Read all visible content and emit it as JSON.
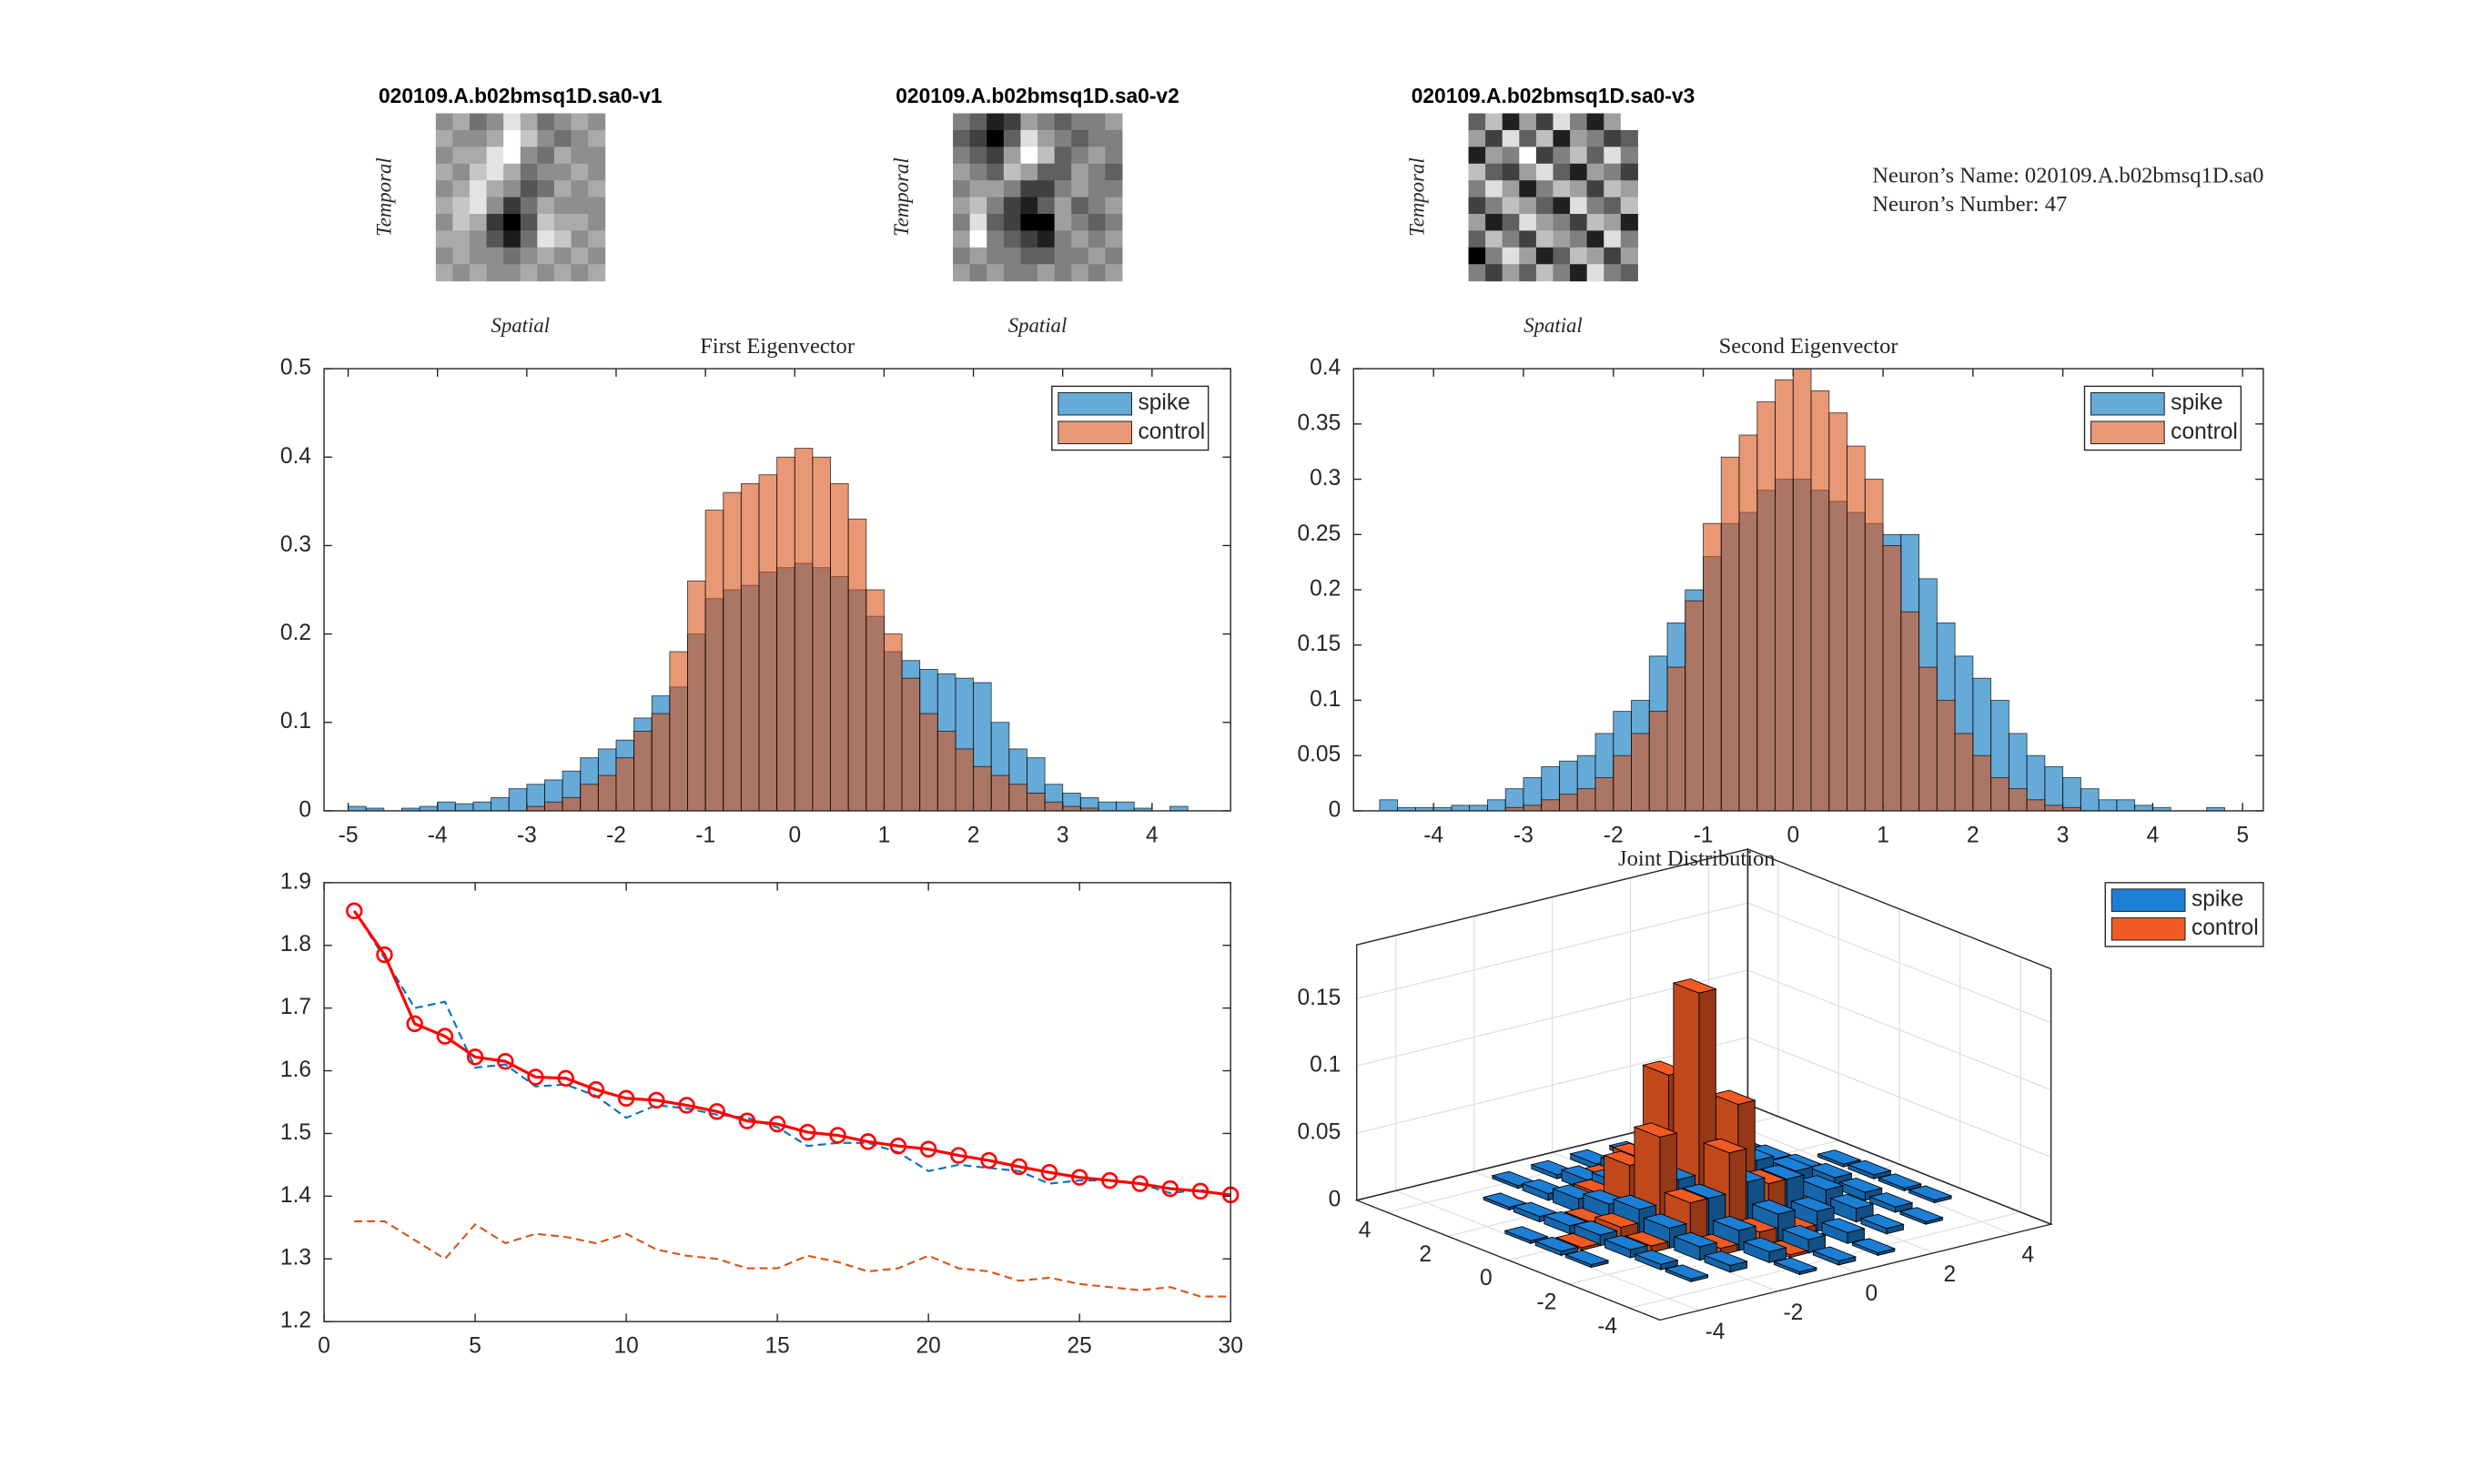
{
  "annotations": [
    "Neuron’s Name: 020109.A.b02bmsq1D.sa0",
    "Neuron’s Number: 47"
  ],
  "chart_data": [
    {
      "type": "image",
      "title": "020109.A.b02bmsq1D.sa0-v1",
      "xlabel": "Spatial",
      "ylabel": "Temporal",
      "values": [
        [
          5,
          6,
          4,
          5,
          8,
          6,
          4,
          5,
          6,
          5
        ],
        [
          6,
          5,
          5,
          6,
          9,
          7,
          5,
          4,
          5,
          6
        ],
        [
          5,
          6,
          6,
          8,
          9,
          5,
          4,
          6,
          5,
          5
        ],
        [
          6,
          5,
          7,
          8,
          6,
          4,
          5,
          5,
          6,
          5
        ],
        [
          5,
          6,
          8,
          6,
          5,
          3,
          4,
          6,
          5,
          6
        ],
        [
          6,
          7,
          8,
          5,
          2,
          4,
          6,
          5,
          5,
          5
        ],
        [
          5,
          7,
          6,
          2,
          0,
          3,
          7,
          6,
          6,
          5
        ],
        [
          6,
          6,
          5,
          3,
          1,
          4,
          8,
          7,
          5,
          6
        ],
        [
          5,
          6,
          5,
          5,
          4,
          5,
          6,
          5,
          6,
          5
        ],
        [
          6,
          5,
          6,
          5,
          5,
          6,
          5,
          6,
          5,
          6
        ]
      ]
    },
    {
      "type": "image",
      "title": "020109.A.b02bmsq1D.sa0-v2",
      "xlabel": "Spatial",
      "ylabel": "Temporal",
      "values": [
        [
          5,
          4,
          2,
          3,
          6,
          5,
          4,
          5,
          5,
          6
        ],
        [
          4,
          3,
          1,
          4,
          8,
          6,
          5,
          4,
          5,
          5
        ],
        [
          5,
          4,
          3,
          6,
          9,
          7,
          4,
          5,
          6,
          5
        ],
        [
          6,
          5,
          4,
          7,
          6,
          4,
          4,
          6,
          5,
          4
        ],
        [
          5,
          6,
          6,
          5,
          3,
          3,
          5,
          6,
          5,
          5
        ],
        [
          6,
          7,
          5,
          3,
          2,
          4,
          6,
          4,
          5,
          6
        ],
        [
          5,
          8,
          4,
          3,
          1,
          1,
          6,
          5,
          4,
          5
        ],
        [
          6,
          9,
          5,
          4,
          3,
          2,
          5,
          6,
          5,
          6
        ],
        [
          5,
          6,
          5,
          5,
          4,
          4,
          5,
          5,
          6,
          5
        ],
        [
          6,
          5,
          6,
          5,
          5,
          6,
          5,
          6,
          5,
          6
        ]
      ]
    },
    {
      "type": "image",
      "title": "020109.A.b02bmsq1D.sa0-v3",
      "xlabel": "Spatial",
      "ylabel": "Temporal",
      "values": [
        [
          4,
          7,
          2,
          6,
          3,
          8,
          5,
          2,
          6,
          9
        ],
        [
          6,
          3,
          8,
          4,
          7,
          2,
          6,
          5,
          3,
          4
        ],
        [
          2,
          6,
          5,
          9,
          3,
          5,
          7,
          4,
          8,
          5
        ],
        [
          7,
          4,
          3,
          6,
          8,
          4,
          2,
          6,
          5,
          3
        ],
        [
          5,
          8,
          6,
          2,
          5,
          7,
          6,
          3,
          7,
          6
        ],
        [
          3,
          5,
          7,
          6,
          4,
          2,
          8,
          5,
          4,
          7
        ],
        [
          6,
          2,
          4,
          8,
          6,
          5,
          3,
          7,
          6,
          2
        ],
        [
          4,
          7,
          5,
          3,
          7,
          6,
          5,
          2,
          8,
          5
        ],
        [
          1,
          5,
          8,
          6,
          2,
          4,
          7,
          6,
          3,
          6
        ],
        [
          5,
          3,
          6,
          4,
          7,
          5,
          2,
          8,
          5,
          4
        ]
      ]
    },
    {
      "type": "histogram",
      "title": "First Eigenvector",
      "legend": "northeast",
      "bins": [
        -5,
        -4.8,
        -4.6,
        -4.4,
        -4.2,
        -4,
        -3.8,
        -3.6,
        -3.4,
        -3.2,
        -3,
        -2.8,
        -2.6,
        -2.4,
        -2.2,
        -2,
        -1.8,
        -1.6,
        -1.4,
        -1.2,
        -1,
        -0.8,
        -0.6,
        -0.4,
        -0.2,
        0,
        0.2,
        0.4,
        0.6,
        0.8,
        1,
        1.2,
        1.4,
        1.6,
        1.8,
        2,
        2.2,
        2.4,
        2.6,
        2.8,
        3,
        3.2,
        3.4,
        3.6,
        3.8,
        4,
        4.2,
        4.4,
        4.6
      ],
      "series": [
        {
          "name": "spike",
          "color": "#0072bd",
          "values": [
            0.005,
            0.003,
            0,
            0.003,
            0.005,
            0.01,
            0.008,
            0.01,
            0.015,
            0.025,
            0.03,
            0.035,
            0.045,
            0.06,
            0.07,
            0.08,
            0.105,
            0.13,
            0.14,
            0.2,
            0.24,
            0.25,
            0.255,
            0.27,
            0.275,
            0.28,
            0.275,
            0.265,
            0.25,
            0.22,
            0.18,
            0.17,
            0.16,
            0.155,
            0.15,
            0.145,
            0.1,
            0.07,
            0.06,
            0.03,
            0.02,
            0.015,
            0.01,
            0.01,
            0.003,
            0,
            0.005,
            0
          ]
        },
        {
          "name": "control",
          "color": "#d95319",
          "values": [
            0,
            0,
            0,
            0,
            0,
            0,
            0,
            0,
            0,
            0,
            0.005,
            0.01,
            0.015,
            0.03,
            0.04,
            0.06,
            0.09,
            0.11,
            0.18,
            0.26,
            0.34,
            0.36,
            0.37,
            0.38,
            0.4,
            0.41,
            0.4,
            0.37,
            0.33,
            0.25,
            0.2,
            0.15,
            0.11,
            0.09,
            0.07,
            0.05,
            0.04,
            0.03,
            0.02,
            0.01,
            0.005,
            0.003,
            0,
            0,
            0,
            0,
            0,
            0
          ]
        }
      ],
      "xlim": [
        -5.27,
        4.88
      ],
      "xticks": [
        -5,
        -4,
        -3,
        -2,
        -1,
        0,
        1,
        2,
        3,
        4
      ],
      "ylim": [
        0,
        0.5
      ],
      "yticks": [
        0,
        0.1,
        0.2,
        0.3,
        0.4,
        0.5
      ]
    },
    {
      "type": "histogram",
      "title": "Second Eigenvector",
      "legend": "northeast",
      "bins": [
        -4.6,
        -4.4,
        -4.2,
        -4,
        -3.8,
        -3.6,
        -3.4,
        -3.2,
        -3,
        -2.8,
        -2.6,
        -2.4,
        -2.2,
        -2,
        -1.8,
        -1.6,
        -1.4,
        -1.2,
        -1,
        -0.8,
        -0.6,
        -0.4,
        -0.2,
        0,
        0.2,
        0.4,
        0.6,
        0.8,
        1,
        1.2,
        1.4,
        1.6,
        1.8,
        2,
        2.2,
        2.4,
        2.6,
        2.8,
        3,
        3.2,
        3.4,
        3.6,
        3.8,
        4,
        4.2,
        4.4,
        4.6,
        4.8,
        5
      ],
      "series": [
        {
          "name": "spike",
          "color": "#0072bd",
          "values": [
            0.01,
            0.003,
            0.003,
            0.003,
            0.005,
            0.005,
            0.01,
            0.02,
            0.03,
            0.04,
            0.045,
            0.05,
            0.07,
            0.09,
            0.1,
            0.14,
            0.17,
            0.2,
            0.23,
            0.26,
            0.27,
            0.29,
            0.3,
            0.3,
            0.29,
            0.28,
            0.27,
            0.26,
            0.25,
            0.25,
            0.21,
            0.17,
            0.14,
            0.12,
            0.1,
            0.07,
            0.05,
            0.04,
            0.03,
            0.02,
            0.01,
            0.01,
            0.005,
            0.003,
            0,
            0,
            0.003,
            0
          ]
        },
        {
          "name": "control",
          "color": "#d95319",
          "values": [
            0,
            0,
            0,
            0,
            0,
            0,
            0,
            0.003,
            0.005,
            0.01,
            0.015,
            0.02,
            0.03,
            0.05,
            0.07,
            0.09,
            0.13,
            0.19,
            0.26,
            0.32,
            0.34,
            0.37,
            0.39,
            0.4,
            0.38,
            0.36,
            0.33,
            0.3,
            0.24,
            0.18,
            0.13,
            0.1,
            0.07,
            0.05,
            0.03,
            0.02,
            0.01,
            0.005,
            0.003,
            0,
            0,
            0,
            0,
            0,
            0,
            0,
            0,
            0
          ]
        }
      ],
      "xlim": [
        -4.89,
        5.23
      ],
      "xticks": [
        -4,
        -3,
        -2,
        -1,
        0,
        1,
        2,
        3,
        4,
        5
      ],
      "ylim": [
        0,
        0.4
      ],
      "yticks": [
        0,
        0.05,
        0.1,
        0.15,
        0.2,
        0.25,
        0.3,
        0.35,
        0.4
      ]
    },
    {
      "type": "line",
      "x": [
        1,
        2,
        3,
        4,
        5,
        6,
        7,
        8,
        9,
        10,
        11,
        12,
        13,
        14,
        15,
        16,
        17,
        18,
        19,
        20,
        21,
        22,
        23,
        24,
        25,
        26,
        27,
        28,
        29,
        30
      ],
      "series": [
        {
          "color": "#0072bd",
          "linestyle": "--",
          "values": [
            1.855,
            1.78,
            1.7,
            1.71,
            1.605,
            1.61,
            1.575,
            1.578,
            1.56,
            1.525,
            1.545,
            1.54,
            1.53,
            1.525,
            1.51,
            1.48,
            1.485,
            1.485,
            1.47,
            1.44,
            1.45,
            1.445,
            1.44,
            1.42,
            1.425,
            1.425,
            1.42,
            1.405,
            1.41,
            1.4
          ]
        },
        {
          "color": "#d95319",
          "linestyle": "--",
          "values": [
            1.36,
            1.36,
            1.33,
            1.3,
            1.355,
            1.325,
            1.34,
            1.335,
            1.325,
            1.34,
            1.315,
            1.305,
            1.3,
            1.285,
            1.285,
            1.305,
            1.295,
            1.28,
            1.285,
            1.305,
            1.285,
            1.28,
            1.265,
            1.27,
            1.26,
            1.255,
            1.25,
            1.255,
            1.24,
            1.24
          ]
        },
        {
          "color": "#ff0000",
          "linestyle": "-",
          "marker": "o",
          "values": [
            1.855,
            1.785,
            1.675,
            1.655,
            1.622,
            1.615,
            1.59,
            1.588,
            1.57,
            1.556,
            1.553,
            1.545,
            1.535,
            1.52,
            1.515,
            1.502,
            1.497,
            1.487,
            1.48,
            1.475,
            1.465,
            1.457,
            1.447,
            1.438,
            1.43,
            1.425,
            1.42,
            1.412,
            1.408,
            1.402
          ]
        }
      ],
      "xlim": [
        0,
        30
      ],
      "xticks": [
        0,
        5,
        10,
        15,
        20,
        25,
        30
      ],
      "ylim": [
        1.2,
        1.9
      ],
      "yticks": [
        1.2,
        1.3,
        1.4,
        1.5,
        1.6,
        1.7,
        1.8,
        1.9
      ]
    },
    {
      "type": "bar3",
      "title": "Joint Distribution",
      "legend": "northeast",
      "x": [
        -4,
        -3,
        -2,
        -1,
        0,
        1,
        2,
        3,
        4
      ],
      "y": [
        -4,
        -3,
        -2,
        -1,
        0,
        1,
        2,
        3,
        4
      ],
      "series": [
        {
          "name": "spike",
          "color": "#1c7fd6",
          "values": [
            [
              0,
              0,
              0,
              0.002,
              0.003,
              0.002,
              0,
              0,
              0
            ],
            [
              0,
              0.002,
              0.005,
              0.008,
              0.01,
              0.008,
              0.004,
              0.002,
              0
            ],
            [
              0,
              0.004,
              0.01,
              0.015,
              0.02,
              0.015,
              0.01,
              0.004,
              0.002
            ],
            [
              0.002,
              0.006,
              0.015,
              0.03,
              0.035,
              0.03,
              0.015,
              0.006,
              0.002
            ],
            [
              0.003,
              0.008,
              0.02,
              0.035,
              0.05,
              0.035,
              0.02,
              0.008,
              0.003
            ],
            [
              0.002,
              0.006,
              0.015,
              0.03,
              0.04,
              0.03,
              0.015,
              0.006,
              0.002
            ],
            [
              0,
              0.004,
              0.01,
              0.015,
              0.02,
              0.015,
              0.01,
              0.004,
              0
            ],
            [
              0,
              0.002,
              0.005,
              0.008,
              0.01,
              0.008,
              0.005,
              0.002,
              0
            ],
            [
              0,
              0,
              0.002,
              0.003,
              0.004,
              0.003,
              0,
              0,
              0
            ]
          ]
        },
        {
          "name": "control",
          "color": "#f15a22",
          "values": [
            [
              0,
              0,
              0,
              0,
              0,
              0,
              0,
              0,
              0
            ],
            [
              0,
              0,
              0,
              0,
              0.002,
              0,
              0,
              0,
              0
            ],
            [
              0,
              0,
              0,
              0.005,
              0.01,
              0.005,
              0,
              0,
              0
            ],
            [
              0,
              0,
              0.005,
              0.03,
              0.06,
              0.03,
              0.005,
              0,
              0
            ],
            [
              0,
              0.002,
              0.01,
              0.07,
              0.17,
              0.08,
              0.01,
              0,
              0
            ],
            [
              0,
              0,
              0.005,
              0.04,
              0.1,
              0.05,
              0.01,
              0,
              0
            ],
            [
              0,
              0,
              0,
              0.01,
              0.03,
              0.01,
              0.002,
              0,
              0
            ],
            [
              0,
              0,
              0,
              0,
              0.005,
              0,
              0,
              0,
              0
            ],
            [
              0,
              0,
              0,
              0,
              0,
              0,
              0,
              0,
              0
            ]
          ]
        }
      ],
      "xlim": [
        -5,
        5
      ],
      "xticks": [
        -4,
        -2,
        0,
        2,
        4
      ],
      "ylim": [
        -5,
        5
      ],
      "yticks": [
        -4,
        -2,
        0,
        2,
        4
      ],
      "zlim": [
        0,
        0.19
      ],
      "zticks": [
        0,
        0.05,
        0.1,
        0.15
      ]
    }
  ]
}
